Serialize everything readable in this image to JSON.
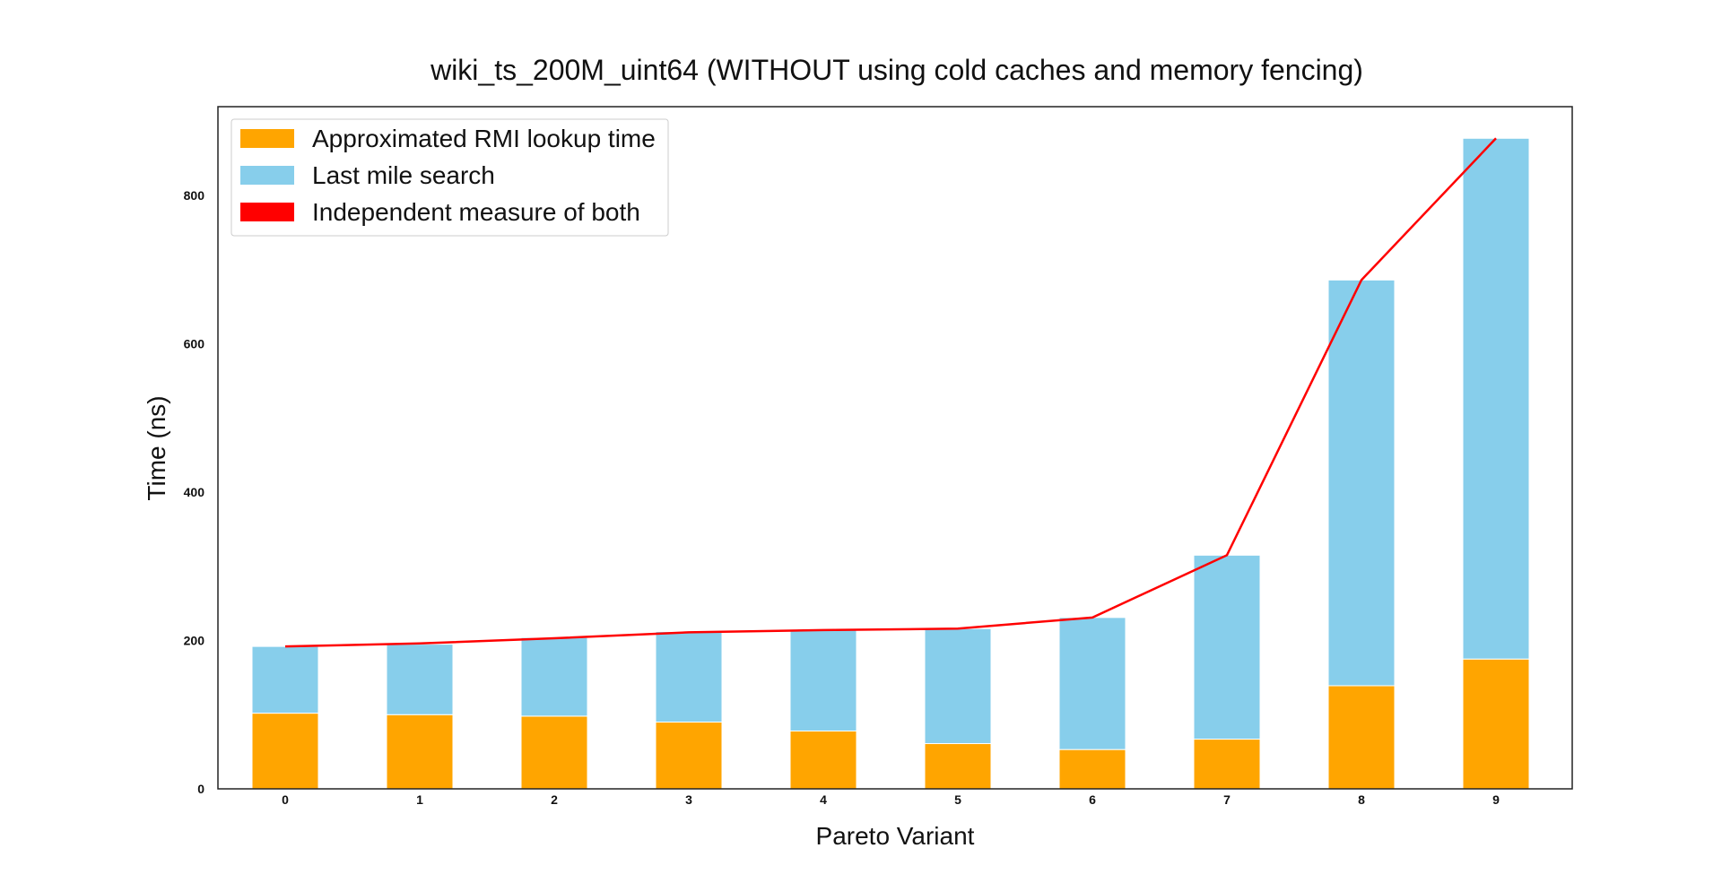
{
  "chart_data": {
    "type": "bar",
    "stacked": true,
    "title": "wiki_ts_200M_uint64 (WITHOUT using cold caches and memory fencing)",
    "xlabel": "Pareto Variant",
    "ylabel": "Time (ns)",
    "categories": [
      "0",
      "1",
      "2",
      "3",
      "4",
      "5",
      "6",
      "7",
      "8",
      "9"
    ],
    "ylim": [
      0,
      920
    ],
    "yticks": [
      0,
      200,
      400,
      600,
      800
    ],
    "grid": false,
    "legend_position": "top-left",
    "series": [
      {
        "name": "Approximated RMI lookup time",
        "kind": "bar",
        "color": "#FFA500",
        "values": [
          102,
          100,
          98,
          90,
          78,
          61,
          53,
          67,
          139,
          175
        ]
      },
      {
        "name": "Last mile search",
        "kind": "bar",
        "color": "#87CEEB",
        "values": [
          90,
          95,
          106,
          122,
          137,
          155,
          178,
          248,
          547,
          702
        ]
      },
      {
        "name": "Independent measure of both",
        "kind": "line",
        "color": "#FF0000",
        "values": [
          192,
          196,
          203,
          211,
          214,
          216,
          231,
          315,
          686,
          877
        ]
      }
    ]
  }
}
